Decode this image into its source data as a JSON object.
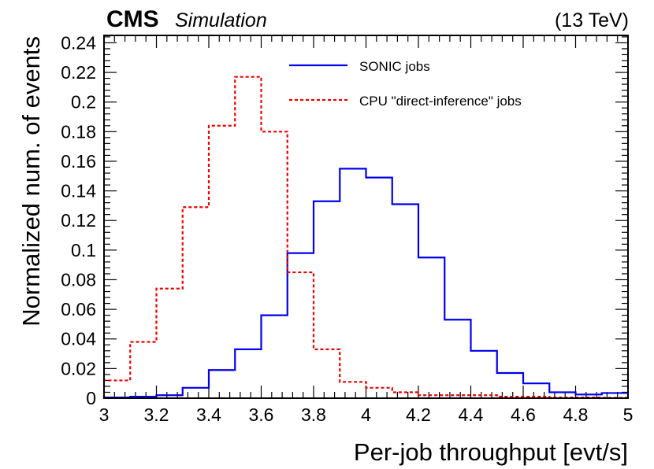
{
  "header": {
    "experiment": "CMS",
    "subtitle": "Simulation",
    "energy": "(13 TeV)"
  },
  "chart_data": {
    "type": "histogram",
    "title": "",
    "xlabel": "Per-job throughput [evt/s]",
    "ylabel": "Normalized num. of events",
    "xlim": [
      3,
      5
    ],
    "ylim": [
      0,
      0.245
    ],
    "xticks": [
      3,
      3.2,
      3.4,
      3.6,
      3.8,
      4,
      4.2,
      4.4,
      4.6,
      4.8,
      5
    ],
    "xtick_labels": [
      "3",
      "3.2",
      "3.4",
      "3.6",
      "3.8",
      "4",
      "4.2",
      "4.4",
      "4.6",
      "4.8",
      "5"
    ],
    "yticks": [
      0,
      0.02,
      0.04,
      0.06,
      0.08,
      0.1,
      0.12,
      0.14,
      0.16,
      0.18,
      0.2,
      0.22,
      0.24
    ],
    "ytick_labels": [
      "0",
      "0.02",
      "0.04",
      "0.06",
      "0.08",
      "0.1",
      "0.12",
      "0.14",
      "0.16",
      "0.18",
      "0.2",
      "0.22",
      "0.24"
    ],
    "bin_edges": [
      3.0,
      3.1,
      3.2,
      3.3,
      3.4,
      3.5,
      3.6,
      3.7,
      3.8,
      3.9,
      4.0,
      4.1,
      4.2,
      4.3,
      4.4,
      4.5,
      4.6,
      4.7,
      4.8,
      4.9,
      5.0
    ],
    "legend_position": "top-right",
    "series": [
      {
        "name": "SONIC jobs",
        "color": "#0000ee",
        "style": "solid",
        "values": [
          0.0005,
          0.001,
          0.002,
          0.007,
          0.019,
          0.033,
          0.056,
          0.098,
          0.133,
          0.155,
          0.149,
          0.131,
          0.095,
          0.053,
          0.032,
          0.017,
          0.01,
          0.004,
          0.0025,
          0.0035
        ]
      },
      {
        "name": "CPU \"direct-inference\" jobs",
        "color": "#ee0000",
        "style": "dashed",
        "values": [
          0.012,
          0.038,
          0.074,
          0.129,
          0.184,
          0.217,
          0.18,
          0.085,
          0.033,
          0.011,
          0.007,
          0.004,
          0.002,
          0.002,
          0.002,
          0.001,
          0.001,
          0.0005,
          0.0005,
          0.0003
        ]
      }
    ]
  }
}
